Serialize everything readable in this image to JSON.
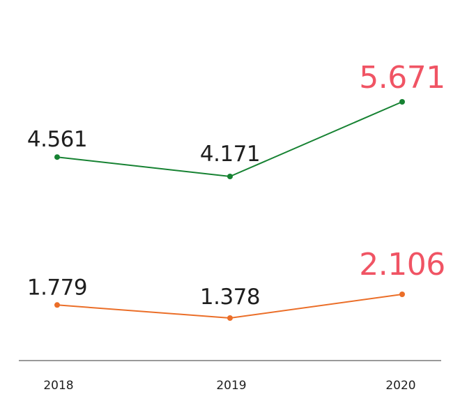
{
  "chart_data": {
    "type": "line",
    "categories": [
      "2018",
      "2019",
      "2020"
    ],
    "series": [
      {
        "values": [
          4.561,
          4.171,
          5.671
        ],
        "labels": [
          "4.561",
          "4.171",
          "5.671"
        ],
        "color": "#168232"
      },
      {
        "values": [
          1.779,
          1.378,
          2.106
        ],
        "labels": [
          "1.779",
          "1.378",
          "2.106"
        ],
        "color": "#eb6e28"
      }
    ],
    "highlight_category": "2020",
    "highlight_color": "#f05464",
    "label_color": "#1e1e1e",
    "axis_color": "#787878",
    "grid": false,
    "legend": "none"
  }
}
